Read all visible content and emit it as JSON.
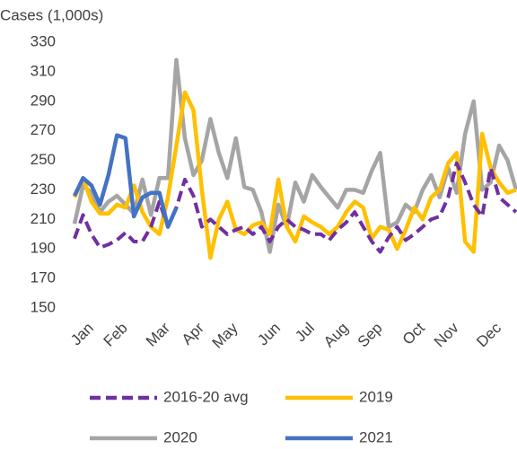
{
  "chart_data": {
    "type": "line",
    "ylabel": "Cases (1,000s)",
    "categories": [
      null,
      null,
      "Jan",
      null,
      null,
      null,
      "Feb",
      null,
      null,
      null,
      null,
      "Mar",
      null,
      null,
      null,
      "Apr",
      null,
      null,
      null,
      "May",
      null,
      null,
      null,
      null,
      "Jun",
      null,
      null,
      null,
      "Jul",
      null,
      null,
      null,
      "Aug",
      null,
      null,
      null,
      "Sep",
      null,
      null,
      null,
      null,
      "Oct",
      null,
      null,
      null,
      "Nov",
      null,
      null,
      null,
      null,
      "Dec",
      null,
      null
    ],
    "series": [
      {
        "name": "2016-20 avg",
        "color": "#7030a0",
        "dash": true,
        "values": [
          197,
          213,
          200,
          191,
          193,
          196,
          201,
          195,
          195,
          205,
          222,
          205,
          218,
          237,
          226,
          205,
          210,
          205,
          200,
          203,
          205,
          200,
          205,
          195,
          205,
          210,
          205,
          203,
          200,
          200,
          196,
          203,
          208,
          215,
          205,
          195,
          188,
          198,
          205,
          196,
          200,
          205,
          210,
          212,
          225,
          248,
          235,
          220,
          212,
          245,
          225,
          220,
          215
        ]
      },
      {
        "name": "2019",
        "color": "#ffc000",
        "values": [
          225,
          238,
          222,
          214,
          214,
          220,
          218,
          233,
          215,
          205,
          200,
          225,
          260,
          296,
          284,
          230,
          184,
          210,
          222,
          203,
          200,
          206,
          208,
          200,
          237,
          205,
          195,
          212,
          208,
          205,
          200,
          205,
          215,
          222,
          218,
          197,
          205,
          203,
          190,
          203,
          218,
          210,
          225,
          230,
          248,
          255,
          195,
          188,
          268,
          245,
          235,
          228,
          230
        ]
      },
      {
        "name": "2020",
        "color": "#a5a5a5",
        "values": [
          207,
          233,
          228,
          215,
          222,
          226,
          220,
          214,
          237,
          213,
          238,
          238,
          318,
          265,
          240,
          250,
          278,
          255,
          238,
          265,
          232,
          230,
          215,
          188,
          220,
          205,
          235,
          222,
          240,
          232,
          225,
          218,
          230,
          230,
          228,
          243,
          255,
          205,
          208,
          220,
          215,
          230,
          240,
          225,
          245,
          228,
          268,
          290,
          230,
          235,
          260,
          250,
          230
        ]
      },
      {
        "name": "2021",
        "color": "#4472c4",
        "values": [
          226,
          238,
          233,
          220,
          240,
          267,
          265,
          212,
          225,
          228,
          228,
          205,
          218,
          null,
          null,
          null,
          null,
          null,
          null,
          null,
          null,
          null,
          null,
          null,
          null,
          null,
          null,
          null,
          null,
          null,
          null,
          null,
          null,
          null,
          null,
          null,
          null,
          null,
          null,
          null,
          null,
          null,
          null,
          null,
          null,
          null,
          null,
          null,
          null,
          null,
          null,
          null,
          null
        ]
      }
    ],
    "ylim": [
      150,
      330
    ],
    "yticks": [
      150,
      170,
      190,
      210,
      230,
      250,
      270,
      290,
      310,
      330
    ]
  }
}
